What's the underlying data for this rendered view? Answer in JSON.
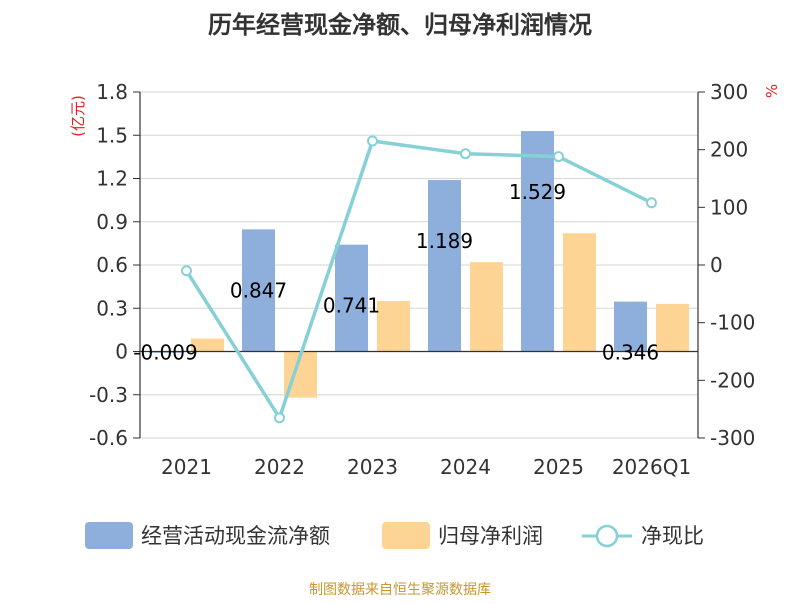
{
  "chart_data": {
    "type": "bar",
    "title": "历年经营现金净额、归母净利润情况",
    "categories": [
      "2021",
      "2022",
      "2023",
      "2024",
      "2025",
      "2026Q1"
    ],
    "series": [
      {
        "name": "经营活动现金流净额",
        "type": "bar",
        "axis": "left",
        "color": "#8eaedb",
        "values": [
          -0.009,
          0.847,
          0.741,
          1.189,
          1.529,
          0.346
        ],
        "labels": [
          "-0.009",
          "0.847",
          "0.741",
          "1.189",
          "1.529",
          "0.346"
        ]
      },
      {
        "name": "归母净利润",
        "type": "bar",
        "axis": "left",
        "color": "#fdd493",
        "values": [
          0.09,
          -0.32,
          0.35,
          0.62,
          0.82,
          0.33
        ]
      },
      {
        "name": "净现比",
        "type": "line",
        "axis": "right",
        "color": "#86d1d6",
        "values": [
          -10,
          -265,
          215,
          193,
          188,
          108
        ]
      }
    ],
    "y_left": {
      "unit": "(亿元)",
      "ticks": [
        "1.8",
        "1.5",
        "1.2",
        "0.9",
        "0.6",
        "0.3",
        "0",
        "-0.3",
        "-0.6"
      ],
      "ylim": [
        -0.6,
        1.8
      ]
    },
    "y_right": {
      "unit": "%",
      "ticks": [
        "300",
        "200",
        "100",
        "0",
        "-100",
        "-200",
        "-300"
      ],
      "ylim": [
        -300,
        300
      ]
    },
    "grid": true,
    "legend_position": "bottom",
    "source": "制图数据来自恒生聚源数据库"
  }
}
